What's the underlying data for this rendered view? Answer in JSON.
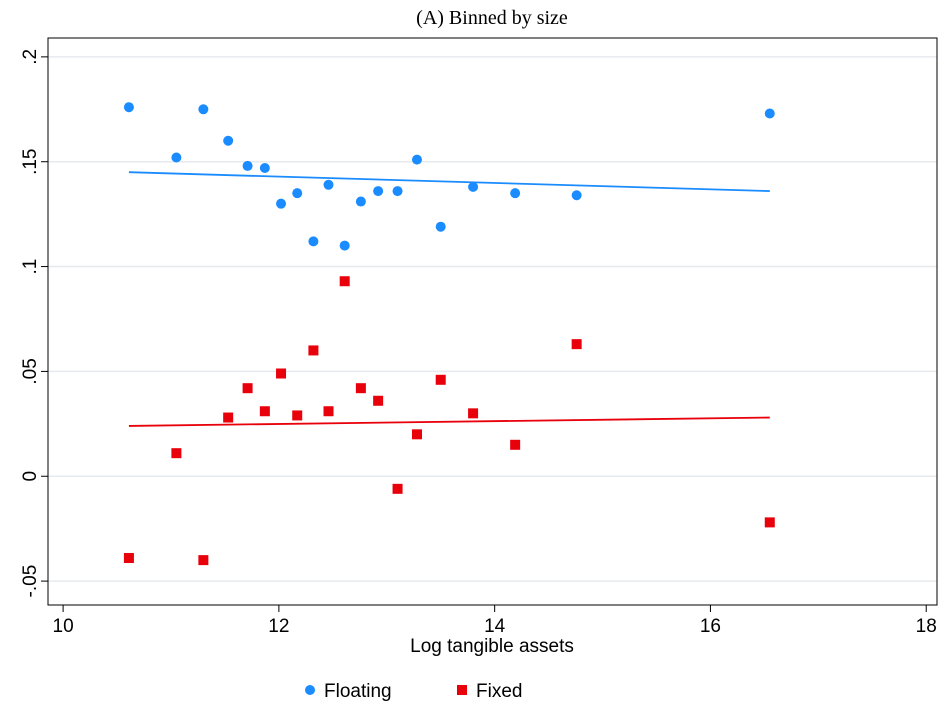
{
  "chart_data": {
    "type": "scatter",
    "title": "(A) Binned by size",
    "xlabel": "Log tangible assets",
    "x": [
      10.61,
      11.05,
      11.3,
      11.53,
      11.71,
      11.87,
      12.02,
      12.17,
      12.32,
      12.46,
      12.61,
      12.76,
      12.92,
      13.1,
      13.28,
      13.5,
      13.8,
      14.19,
      14.76,
      16.55
    ],
    "series": [
      {
        "name": "Floating",
        "color": "#1a8cff",
        "marker": "circle",
        "values": [
          0.176,
          0.152,
          0.175,
          0.16,
          0.148,
          0.147,
          0.13,
          0.135,
          0.112,
          0.139,
          0.11,
          0.131,
          0.136,
          0.136,
          0.151,
          0.119,
          0.138,
          0.135,
          0.134,
          0.173
        ],
        "fit": {
          "x": [
            10.61,
            16.55
          ],
          "values": [
            0.145,
            0.136
          ]
        }
      },
      {
        "name": "Fixed",
        "color": "#e8000b",
        "marker": "square",
        "values": [
          -0.039,
          0.011,
          -0.04,
          0.028,
          0.042,
          0.031,
          0.049,
          0.029,
          0.06,
          0.031,
          0.093,
          0.042,
          0.036,
          -0.006,
          0.02,
          0.046,
          0.03,
          0.015,
          0.063,
          -0.022
        ],
        "fit": {
          "x": [
            10.61,
            16.55
          ],
          "values": [
            0.024,
            0.028
          ]
        }
      }
    ],
    "xlim": [
      9.86,
      18.1
    ],
    "xticks": [
      10,
      12,
      14,
      16,
      18
    ],
    "ylim": [
      -0.0614,
      0.209
    ],
    "yticks": [
      {
        "value": -0.05,
        "label": "-.05"
      },
      0,
      {
        "value": 0.05,
        "label": ".05"
      },
      {
        "value": 0.1,
        "label": ".1"
      },
      {
        "value": 0.15,
        "label": ".15"
      },
      {
        "value": 0.2,
        "label": ".2"
      }
    ],
    "grid": true,
    "legend": "bottom"
  }
}
